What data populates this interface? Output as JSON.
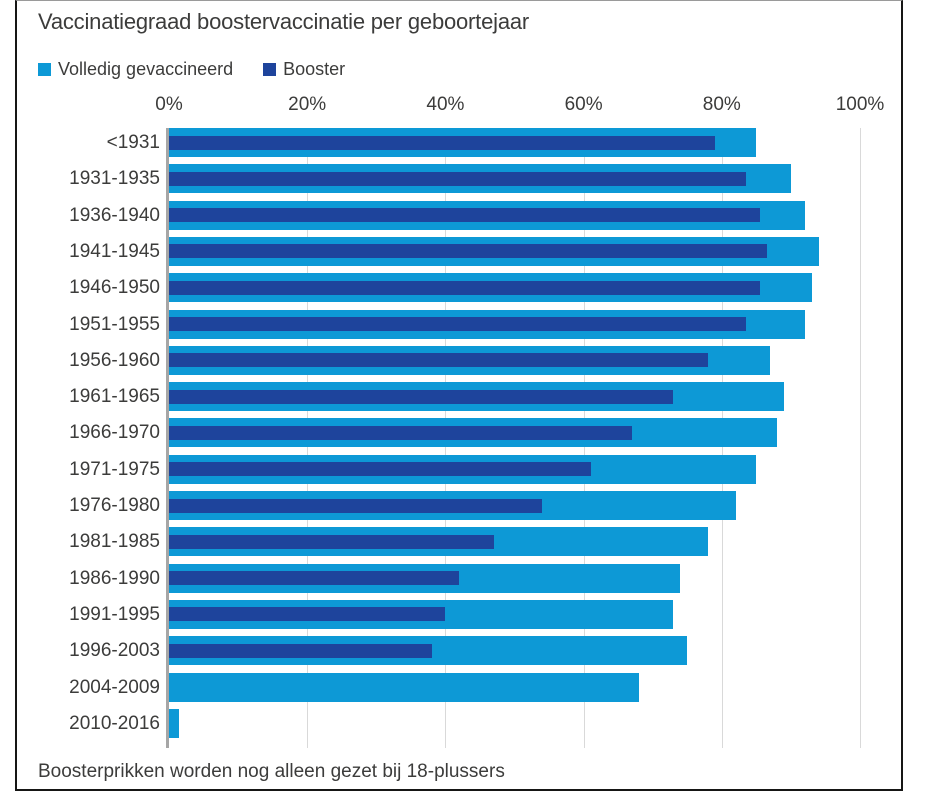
{
  "title": "Vaccinatiegraad boostervaccinatie per geboortejaar",
  "footnote": "Boosterprikken worden nog alleen gezet bij 18-plussers",
  "colors": {
    "fully_vaccinated": "#0d99d6",
    "booster": "#1e449c",
    "text": "#3c3c3b",
    "gridline": "#d9d9d9",
    "axis_line": "#a6a6a6",
    "frame_border": "#161615"
  },
  "legend": {
    "items": [
      {
        "label": "Volledig gevaccineerd",
        "color": "#0d99d6"
      },
      {
        "label": "Booster",
        "color": "#1e449c"
      }
    ]
  },
  "chart_data": {
    "type": "bar",
    "orientation": "horizontal",
    "title": "Vaccinatiegraad boostervaccinatie per geboortejaar",
    "xlabel": "",
    "ylabel": "",
    "x_ticks": [
      "0%",
      "20%",
      "40%",
      "60%",
      "80%",
      "100%"
    ],
    "xlim": [
      0,
      100
    ],
    "grid": true,
    "legend_position": "top",
    "annotation": "Boosterprikken worden nog alleen gezet bij 18-plussers",
    "categories": [
      "<1931",
      "1931-1935",
      "1936-1940",
      "1941-1945",
      "1946-1950",
      "1951-1955",
      "1956-1960",
      "1961-1965",
      "1966-1970",
      "1971-1975",
      "1976-1980",
      "1981-1985",
      "1986-1990",
      "1991-1995",
      "1996-2003",
      "2004-2009",
      "2010-2016"
    ],
    "series": [
      {
        "name": "Volledig gevaccineerd",
        "color": "#0d99d6",
        "values": [
          85,
          90,
          92,
          94,
          93,
          92,
          87,
          89,
          88,
          85,
          82,
          78,
          74,
          73,
          75,
          68,
          1.5
        ]
      },
      {
        "name": "Booster",
        "color": "#1e449c",
        "values": [
          79,
          83.5,
          85.5,
          86.5,
          85.5,
          83.5,
          78,
          73,
          67,
          61,
          54,
          47,
          42,
          40,
          38,
          null,
          null
        ]
      }
    ]
  }
}
